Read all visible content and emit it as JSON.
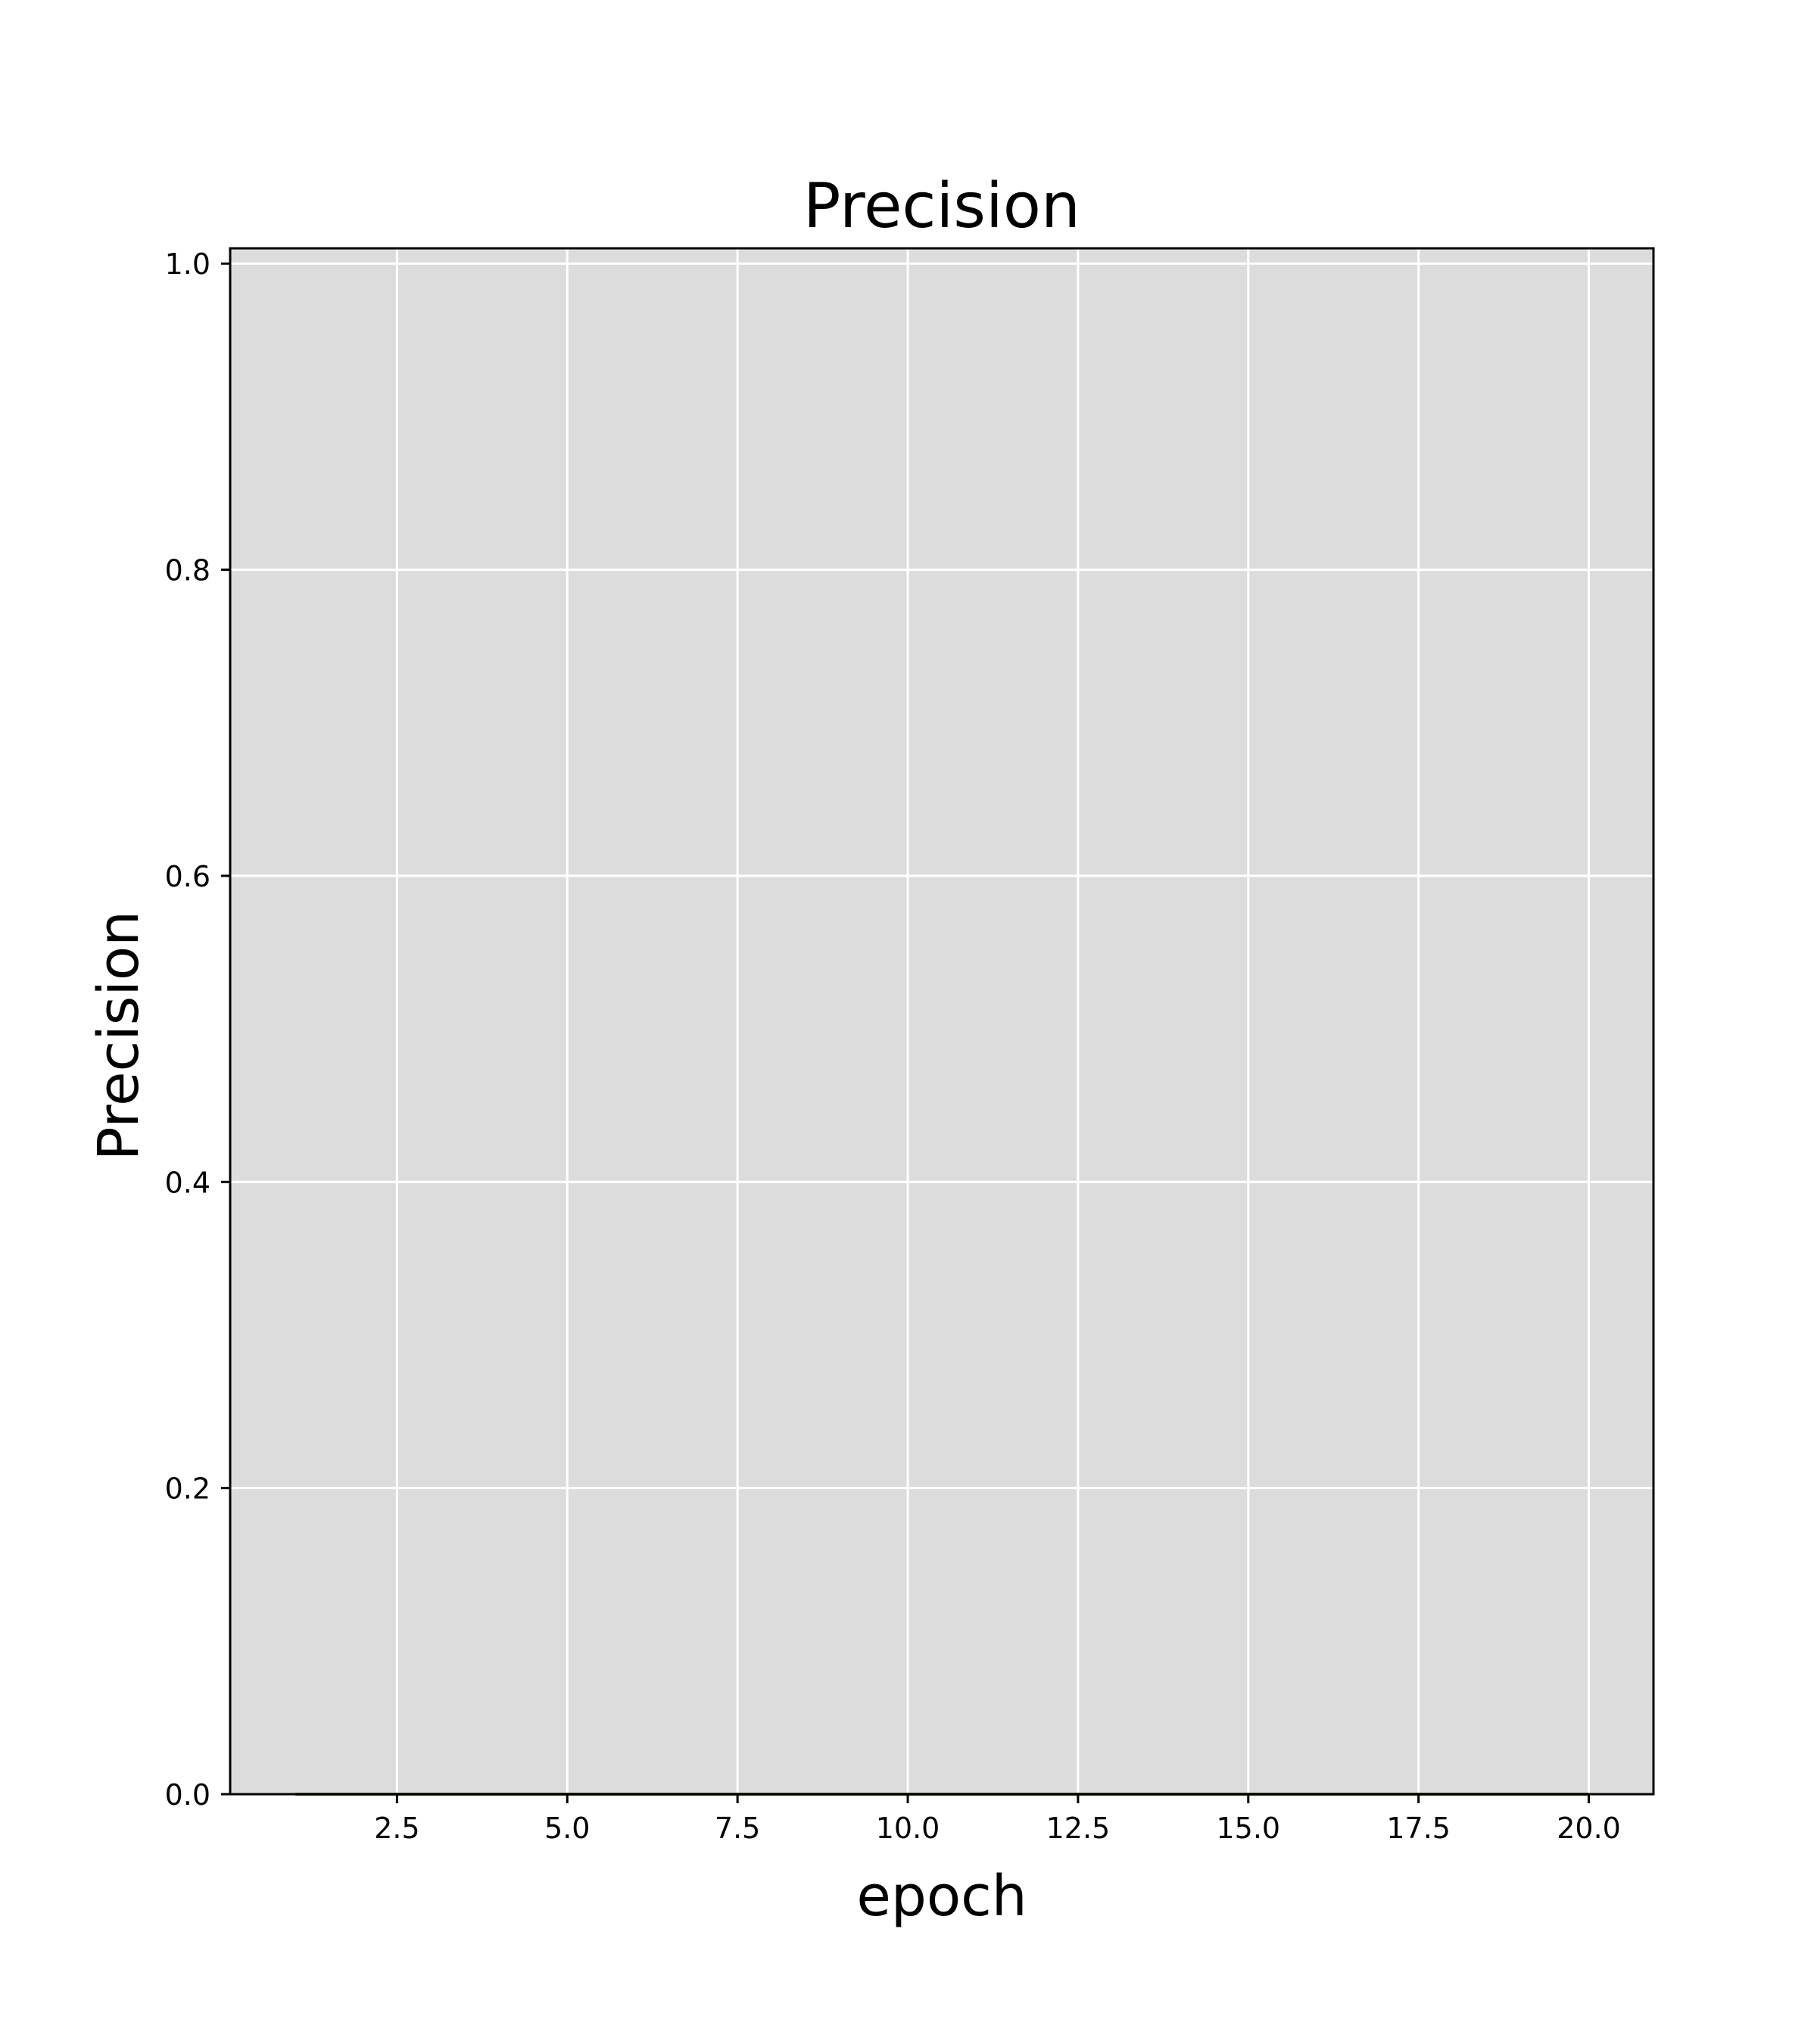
{
  "chart_data": {
    "type": "line",
    "title": "Precision",
    "xlabel": "epoch",
    "ylabel": "Precision",
    "xlim": [
      0.05,
      20.95
    ],
    "ylim": [
      0.0,
      1.01
    ],
    "x_ticks": [
      2.5,
      5.0,
      7.5,
      10.0,
      12.5,
      15.0,
      17.5,
      20.0
    ],
    "x_tick_labels": [
      "2.5",
      "5.0",
      "7.5",
      "10.0",
      "12.5",
      "15.0",
      "17.5",
      "20.0"
    ],
    "y_ticks": [
      0.0,
      0.2,
      0.4,
      0.6,
      0.8,
      1.0
    ],
    "y_tick_labels": [
      "0.0",
      "0.2",
      "0.4",
      "0.6",
      "0.8",
      "1.0"
    ],
    "grid": true,
    "plot_background": "#dcdcdc",
    "grid_color": "#ffffff",
    "series": [
      {
        "color": "#556b2f",
        "x": [
          1,
          2,
          3,
          4,
          5,
          6,
          7,
          8,
          9,
          10,
          11,
          12,
          13,
          14,
          15,
          16,
          17,
          18,
          19,
          20
        ],
        "y": [
          0,
          0,
          0,
          0,
          0,
          0,
          0,
          0,
          0,
          0,
          0,
          0,
          0,
          0,
          0,
          0,
          0,
          0,
          0,
          0
        ]
      }
    ]
  }
}
